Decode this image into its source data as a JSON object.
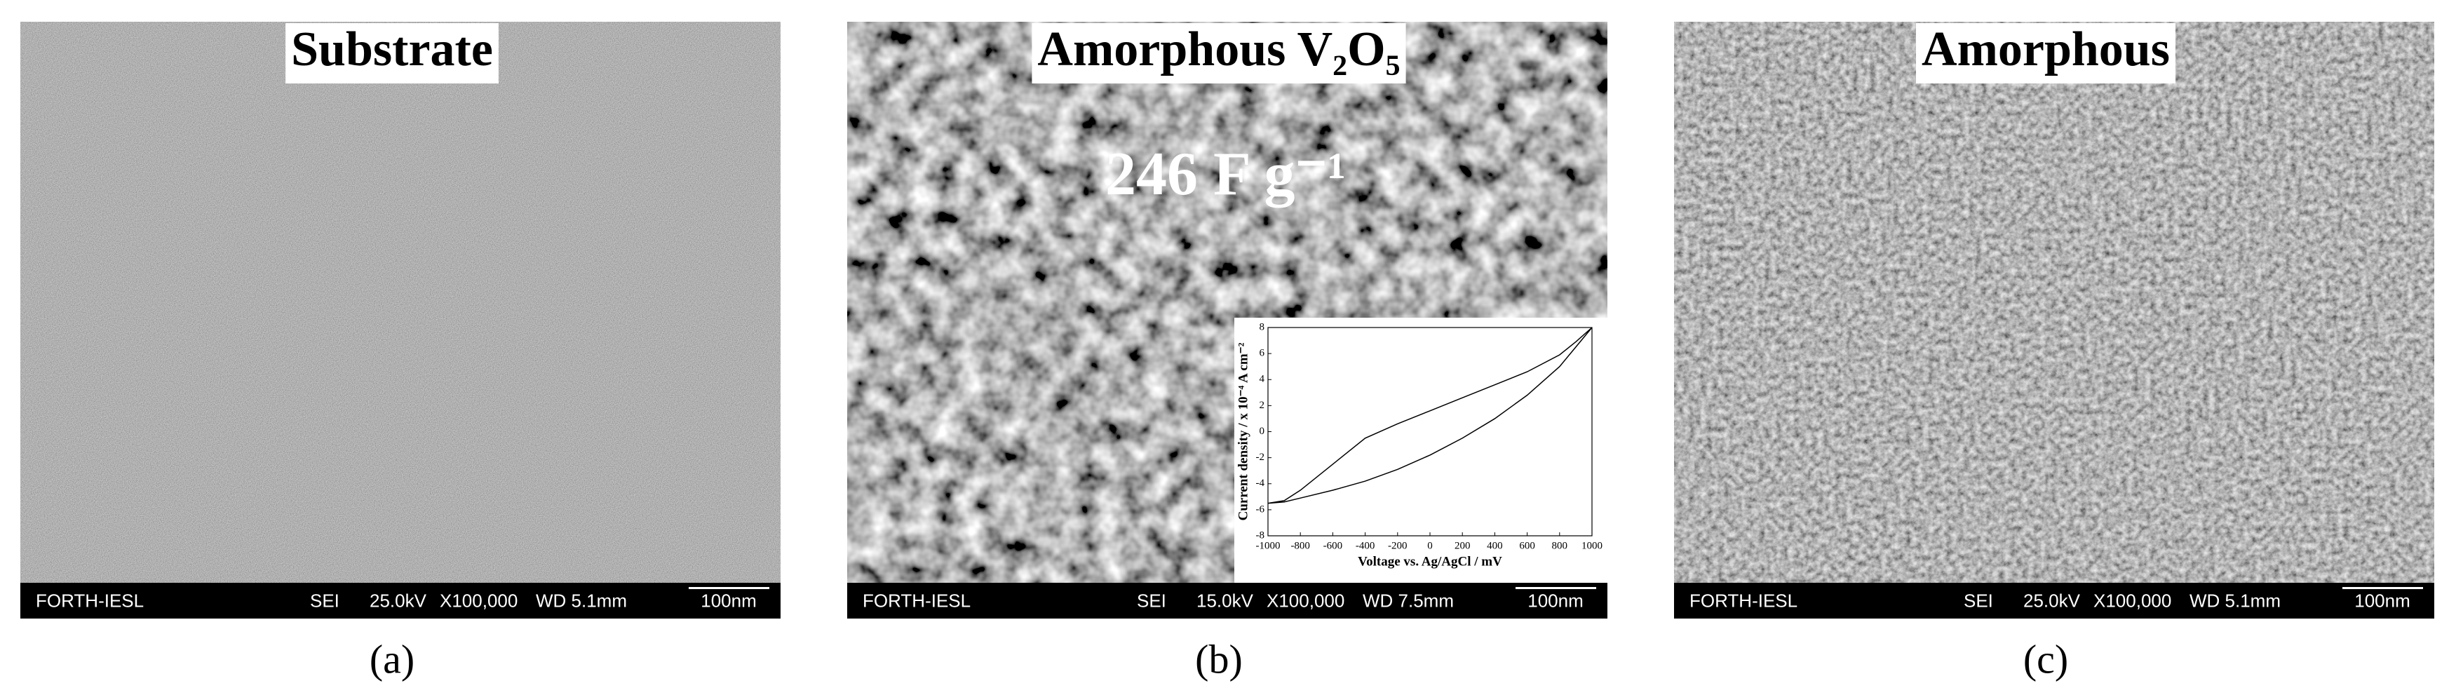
{
  "panels": [
    {
      "title": "Substrate",
      "info_bar": {
        "lab": "FORTH-IESL",
        "mode": "SEI",
        "voltage": "25.0kV",
        "magnification": "X100,000",
        "working_distance": "WD 5.1mm",
        "scale_bar": "100nm"
      },
      "label": "(a)"
    },
    {
      "title": "Amorphous V₂O₅",
      "annotation": "246 F g⁻¹",
      "info_bar": {
        "lab": "FORTH-IESL",
        "mode": "SEI",
        "voltage": "15.0kV",
        "magnification": "X100,000",
        "working_distance": "WD 7.5mm",
        "scale_bar": "100nm"
      },
      "label": "(b)"
    },
    {
      "title": "Amorphous",
      "info_bar": {
        "lab": "FORTH-IESL",
        "mode": "SEI",
        "voltage": "25.0kV",
        "magnification": "X100,000",
        "working_distance": "WD 5.1mm",
        "scale_bar": "100nm"
      },
      "label": "(c)"
    }
  ],
  "chart_data": {
    "type": "line",
    "x_label": "Voltage vs. Ag/AgCl / mV",
    "y_label": "Current density / x 10⁻⁴ A cm⁻²",
    "x": [
      -1000,
      -900,
      -800,
      -600,
      -400,
      -200,
      0,
      200,
      400,
      600,
      800,
      900,
      1000,
      900,
      800,
      600,
      400,
      200,
      0,
      -200,
      -400,
      -600,
      -800,
      -900,
      -1000
    ],
    "values": [
      -5.5,
      -5.3,
      -4.5,
      -2.5,
      -0.5,
      0.6,
      1.6,
      2.6,
      3.6,
      4.6,
      5.9,
      6.9,
      8,
      6.5,
      5,
      2.8,
      1,
      -0.5,
      -1.8,
      -2.9,
      -3.8,
      -4.5,
      -5.1,
      -5.4,
      -5.5
    ],
    "color": "#000000",
    "xlim": [
      -1000,
      1000
    ],
    "ylim": [
      -8,
      8
    ],
    "xticks": [
      -1000,
      -800,
      -600,
      -400,
      -200,
      0,
      200,
      400,
      600,
      800,
      1000
    ],
    "yticks": [
      -8,
      -6,
      -4,
      -2,
      0,
      2,
      4,
      6,
      8
    ]
  }
}
